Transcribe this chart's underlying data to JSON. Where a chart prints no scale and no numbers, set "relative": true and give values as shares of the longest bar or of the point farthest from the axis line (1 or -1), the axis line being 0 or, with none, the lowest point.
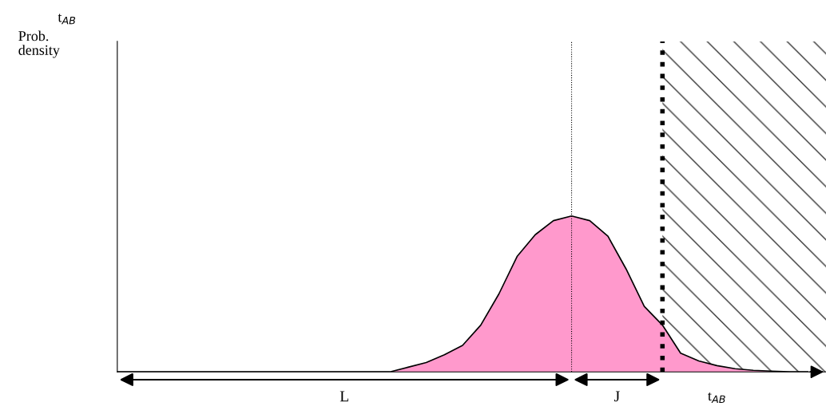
{
  "chart_data": {
    "type": "area",
    "relative": true,
    "title": "t$_{AB}$",
    "xlabel": "t$_{AB}$",
    "categories": [
      null,
      null,
      null,
      null,
      null,
      null,
      null,
      null,
      null,
      null,
      null,
      null,
      null,
      null,
      null,
      null,
      null,
      null,
      null,
      null,
      null,
      null,
      null,
      null,
      null,
      null,
      null,
      null,
      null,
      null,
      null,
      null,
      null,
      null,
      null,
      null,
      null,
      null,
      null
    ],
    "series": [
      {
        "color": "#ff99cc",
        "values": [
          0,
          0,
          0,
          0,
          0,
          0,
          0,
          0,
          0,
          0,
          0,
          0,
          0,
          0,
          0,
          0,
          0.03,
          0.06,
          0.11,
          0.17,
          0.3,
          0.5,
          0.74,
          0.88,
          0.97,
          1.0,
          0.97,
          0.87,
          0.66,
          0.42,
          0.3,
          0.12,
          0.07,
          0.04,
          0.02,
          0.01,
          0.005,
          0,
          0
        ]
      }
    ],
    "annotations": [
      "Prob.\ndensity",
      "L",
      "J"
    ]
  }
}
